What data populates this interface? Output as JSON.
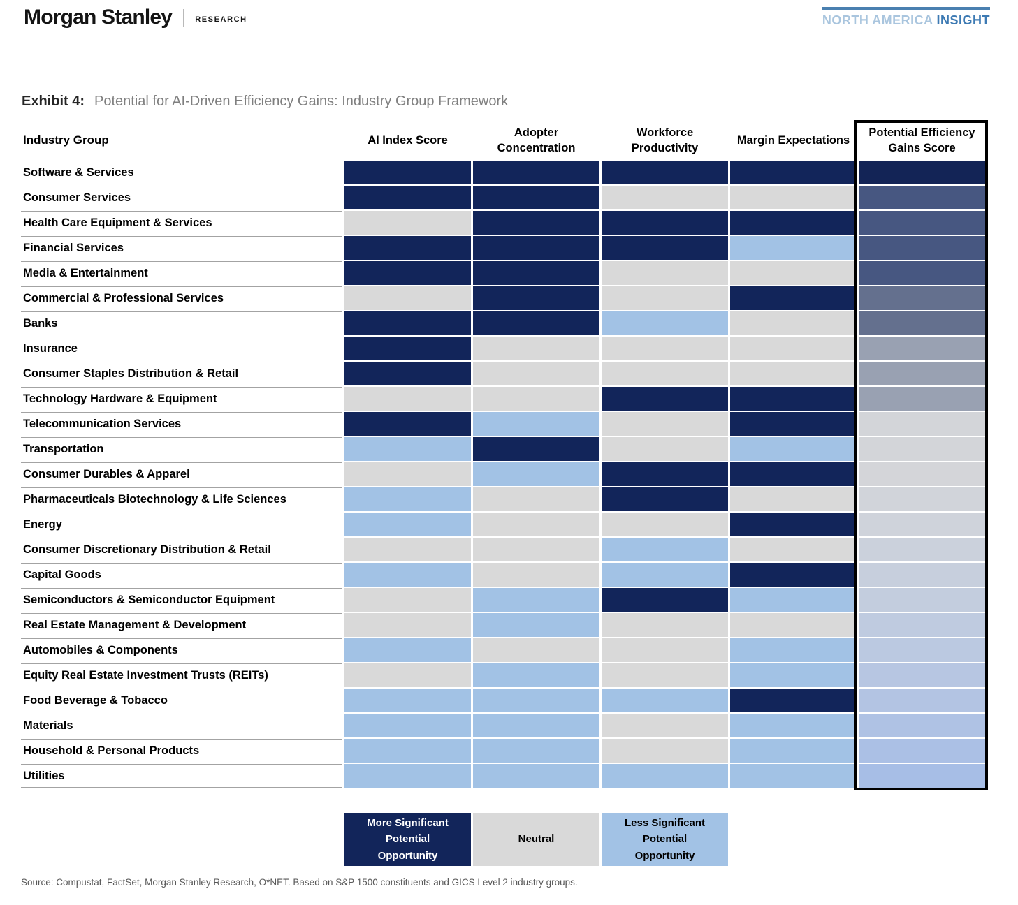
{
  "header": {
    "brand": "Morgan Stanley",
    "division": "RESEARCH",
    "banner_region": "NORTH AMERICA ",
    "banner_name": "INSIGHT",
    "banner_bar_color": "#4a80b0"
  },
  "exhibit": {
    "label": "Exhibit 4:",
    "title": "Potential for AI-Driven Efficiency Gains: Industry Group Framework"
  },
  "chart_data": {
    "type": "heatmap",
    "title": "Potential for AI-Driven Efficiency Gains: Industry Group Framework",
    "row_header": "Industry Group",
    "columns": [
      "AI Index Score",
      "Adopter Concentration",
      "Workforce Productivity",
      "Margin Expectations"
    ],
    "score_column": "Potential Efficiency Gains Score",
    "value_scale": {
      "more": "More Significant Potential Opportunity",
      "neutral": "Neutral",
      "less": "Less Significant Potential Opportunity"
    },
    "palette": {
      "more": "#12255A",
      "neutral": "#D9D9D9",
      "less": "#A2C2E5"
    },
    "rows": [
      {
        "industry": "Software & Services",
        "values": [
          "more",
          "more",
          "more",
          "more"
        ],
        "score_color": "#132456"
      },
      {
        "industry": "Consumer Services",
        "values": [
          "more",
          "more",
          "neutral",
          "neutral"
        ],
        "score_color": "#475781"
      },
      {
        "industry": "Health Care Equipment & Services",
        "values": [
          "neutral",
          "more",
          "more",
          "more"
        ],
        "score_color": "#475781"
      },
      {
        "industry": "Financial Services",
        "values": [
          "more",
          "more",
          "more",
          "less"
        ],
        "score_color": "#475781"
      },
      {
        "industry": "Media & Entertainment",
        "values": [
          "more",
          "more",
          "neutral",
          "neutral"
        ],
        "score_color": "#475781"
      },
      {
        "industry": "Commercial & Professional Services",
        "values": [
          "neutral",
          "more",
          "neutral",
          "more"
        ],
        "score_color": "#64708E"
      },
      {
        "industry": "Banks",
        "values": [
          "more",
          "more",
          "less",
          "neutral"
        ],
        "score_color": "#64708E"
      },
      {
        "industry": "Insurance",
        "values": [
          "more",
          "neutral",
          "neutral",
          "neutral"
        ],
        "score_color": "#99A1B2"
      },
      {
        "industry": "Consumer Staples Distribution & Retail",
        "values": [
          "more",
          "neutral",
          "neutral",
          "neutral"
        ],
        "score_color": "#99A1B2"
      },
      {
        "industry": "Technology Hardware & Equipment",
        "values": [
          "neutral",
          "neutral",
          "more",
          "more"
        ],
        "score_color": "#99A1B2"
      },
      {
        "industry": "Telecommunication Services",
        "values": [
          "more",
          "less",
          "neutral",
          "more"
        ],
        "score_color": "#D3D5D9"
      },
      {
        "industry": "Transportation",
        "values": [
          "less",
          "more",
          "neutral",
          "less"
        ],
        "score_color": "#D3D5D9"
      },
      {
        "industry": "Consumer Durables & Apparel",
        "values": [
          "neutral",
          "less",
          "more",
          "more"
        ],
        "score_color": "#D4D5D9"
      },
      {
        "industry": "Pharmaceuticals Biotechnology & Life Sciences",
        "values": [
          "less",
          "neutral",
          "more",
          "neutral"
        ],
        "score_color": "#D1D4DA"
      },
      {
        "industry": "Energy",
        "values": [
          "less",
          "neutral",
          "neutral",
          "more"
        ],
        "score_color": "#CFD3DB"
      },
      {
        "industry": "Consumer Discretionary Distribution & Retail",
        "values": [
          "neutral",
          "neutral",
          "less",
          "neutral"
        ],
        "score_color": "#CBD1DC"
      },
      {
        "industry": "Capital Goods",
        "values": [
          "less",
          "neutral",
          "less",
          "more"
        ],
        "score_color": "#C7CFDD"
      },
      {
        "industry": "Semiconductors & Semiconductor Equipment",
        "values": [
          "neutral",
          "less",
          "more",
          "less"
        ],
        "score_color": "#C3CDDE"
      },
      {
        "industry": "Real Estate Management & Development",
        "values": [
          "neutral",
          "less",
          "neutral",
          "neutral"
        ],
        "score_color": "#BFCBE0"
      },
      {
        "industry": "Automobiles & Components",
        "values": [
          "less",
          "neutral",
          "neutral",
          "less"
        ],
        "score_color": "#BBC9E1"
      },
      {
        "industry": "Equity Real Estate Investment Trusts (REITs)",
        "values": [
          "neutral",
          "less",
          "neutral",
          "less"
        ],
        "score_color": "#B7C6E2"
      },
      {
        "industry": "Food Beverage & Tobacco",
        "values": [
          "less",
          "less",
          "less",
          "more"
        ],
        "score_color": "#B3C4E3"
      },
      {
        "industry": "Materials",
        "values": [
          "less",
          "less",
          "neutral",
          "less"
        ],
        "score_color": "#AFC2E4"
      },
      {
        "industry": "Household & Personal Products",
        "values": [
          "less",
          "less",
          "neutral",
          "less"
        ],
        "score_color": "#ABC0E5"
      },
      {
        "industry": "Utilities",
        "values": [
          "less",
          "less",
          "less",
          "less"
        ],
        "score_color": "#A7BEE6"
      }
    ]
  },
  "legend": {
    "more": "More Significant Potential Opportunity",
    "neutral": "Neutral",
    "less": "Less Significant Potential Opportunity"
  },
  "source": "Source: Compustat, FactSet, Morgan Stanley Research, O*NET. Based on S&P 1500 constituents and GICS Level 2 industry groups."
}
